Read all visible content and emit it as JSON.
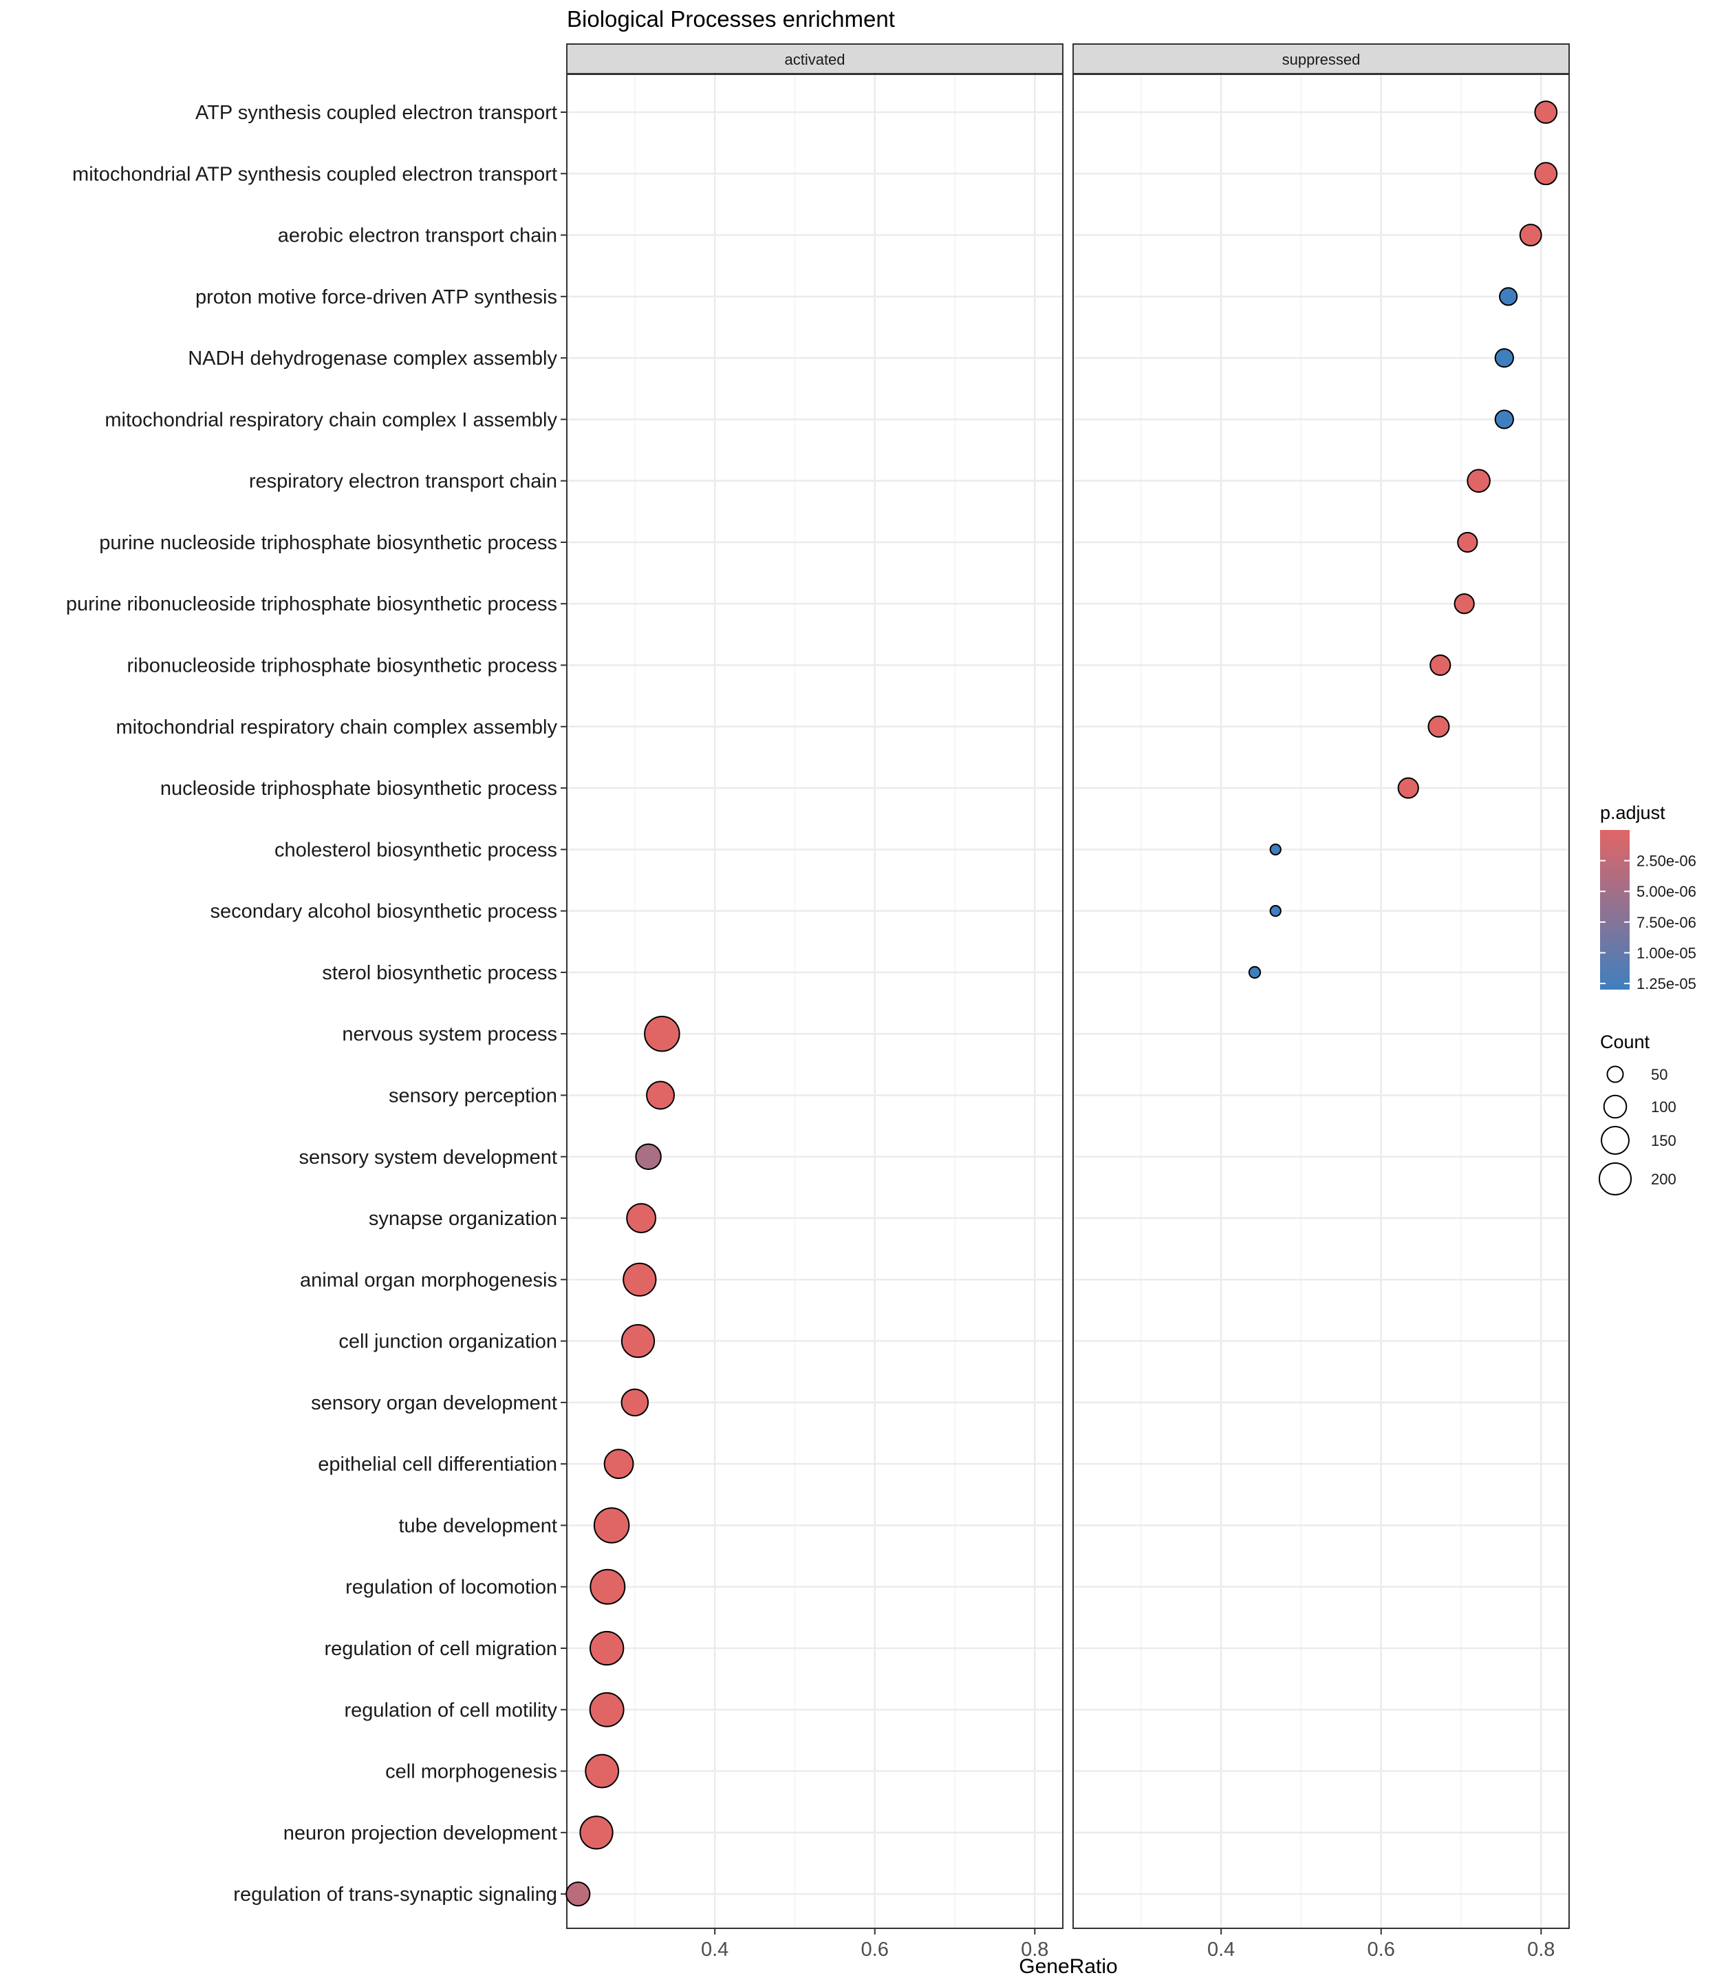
{
  "chart_data": {
    "type": "scatter",
    "title": "Biological Processes enrichment",
    "xlabel": "GeneRatio",
    "ylabel": "",
    "xlim": [
      0.215,
      0.835
    ],
    "x_ticks": [
      {
        "value": 0.4,
        "label": "0.4"
      },
      {
        "value": 0.6,
        "label": "0.6"
      },
      {
        "value": 0.8,
        "label": "0.8"
      }
    ],
    "panels": [
      {
        "key": "activated",
        "label": "activated"
      },
      {
        "key": "suppressed",
        "label": "suppressed"
      }
    ],
    "categories": [
      "ATP synthesis coupled electron transport",
      "mitochondrial ATP synthesis coupled electron transport",
      "aerobic electron transport chain",
      "proton motive force-driven ATP synthesis",
      "NADH dehydrogenase complex assembly",
      "mitochondrial respiratory chain complex I assembly",
      "respiratory electron transport chain",
      "purine nucleoside triphosphate biosynthetic process",
      "purine ribonucleoside triphosphate biosynthetic process",
      "ribonucleoside triphosphate biosynthetic process",
      "mitochondrial respiratory chain complex assembly",
      "nucleoside triphosphate biosynthetic process",
      "cholesterol biosynthetic process",
      "secondary alcohol biosynthetic process",
      "sterol biosynthetic process",
      "nervous system process",
      "sensory perception",
      "sensory system development",
      "synapse organization",
      "animal organ morphogenesis",
      "cell junction organization",
      "sensory organ development",
      "epithelial cell differentiation",
      "tube development",
      "regulation of locomotion",
      "regulation of cell migration",
      "regulation of cell motility",
      "cell morphogenesis",
      "neuron projection development",
      "regulation of trans-synaptic signaling"
    ],
    "points": [
      {
        "term": "ATP synthesis coupled electron transport",
        "panel": "suppressed",
        "gene_ratio": 0.806,
        "count": 95,
        "p_adjust": 1e-08
      },
      {
        "term": "mitochondrial ATP synthesis coupled electron transport",
        "panel": "suppressed",
        "gene_ratio": 0.806,
        "count": 95,
        "p_adjust": 1e-08
      },
      {
        "term": "aerobic electron transport chain",
        "panel": "suppressed",
        "gene_ratio": 0.787,
        "count": 90,
        "p_adjust": 1e-08
      },
      {
        "term": "proton motive force-driven ATP synthesis",
        "panel": "suppressed",
        "gene_ratio": 0.759,
        "count": 60,
        "p_adjust": 1.3e-05
      },
      {
        "term": "NADH dehydrogenase complex assembly",
        "panel": "suppressed",
        "gene_ratio": 0.754,
        "count": 65,
        "p_adjust": 1.3e-05
      },
      {
        "term": "mitochondrial respiratory chain complex I assembly",
        "panel": "suppressed",
        "gene_ratio": 0.754,
        "count": 65,
        "p_adjust": 1.3e-05
      },
      {
        "term": "respiratory electron transport chain",
        "panel": "suppressed",
        "gene_ratio": 0.722,
        "count": 100,
        "p_adjust": 1e-08
      },
      {
        "term": "purine nucleoside triphosphate biosynthetic process",
        "panel": "suppressed",
        "gene_ratio": 0.708,
        "count": 75,
        "p_adjust": 1e-08
      },
      {
        "term": "purine ribonucleoside triphosphate biosynthetic process",
        "panel": "suppressed",
        "gene_ratio": 0.704,
        "count": 75,
        "p_adjust": 1e-08
      },
      {
        "term": "ribonucleoside triphosphate biosynthetic process",
        "panel": "suppressed",
        "gene_ratio": 0.674,
        "count": 80,
        "p_adjust": 1e-08
      },
      {
        "term": "mitochondrial respiratory chain complex assembly",
        "panel": "suppressed",
        "gene_ratio": 0.672,
        "count": 85,
        "p_adjust": 1e-08
      },
      {
        "term": "nucleoside triphosphate biosynthetic process",
        "panel": "suppressed",
        "gene_ratio": 0.634,
        "count": 80,
        "p_adjust": 1e-08
      },
      {
        "term": "cholesterol biosynthetic process",
        "panel": "suppressed",
        "gene_ratio": 0.468,
        "count": 22,
        "p_adjust": 1.3e-05
      },
      {
        "term": "secondary alcohol biosynthetic process",
        "panel": "suppressed",
        "gene_ratio": 0.468,
        "count": 22,
        "p_adjust": 1.3e-05
      },
      {
        "term": "sterol biosynthetic process",
        "panel": "suppressed",
        "gene_ratio": 0.442,
        "count": 25,
        "p_adjust": 1.3e-05
      },
      {
        "term": "nervous system process",
        "panel": "activated",
        "gene_ratio": 0.334,
        "count": 240,
        "p_adjust": 1e-08
      },
      {
        "term": "sensory perception",
        "panel": "activated",
        "gene_ratio": 0.332,
        "count": 150,
        "p_adjust": 1e-08
      },
      {
        "term": "sensory system development",
        "panel": "activated",
        "gene_ratio": 0.317,
        "count": 125,
        "p_adjust": 4.5e-06
      },
      {
        "term": "synapse organization",
        "panel": "activated",
        "gene_ratio": 0.308,
        "count": 165,
        "p_adjust": 1e-08
      },
      {
        "term": "animal organ morphogenesis",
        "panel": "activated",
        "gene_ratio": 0.306,
        "count": 210,
        "p_adjust": 1e-08
      },
      {
        "term": "cell junction organization",
        "panel": "activated",
        "gene_ratio": 0.304,
        "count": 210,
        "p_adjust": 1e-08
      },
      {
        "term": "sensory organ development",
        "panel": "activated",
        "gene_ratio": 0.3,
        "count": 140,
        "p_adjust": 1e-08
      },
      {
        "term": "epithelial cell differentiation",
        "panel": "activated",
        "gene_ratio": 0.28,
        "count": 165,
        "p_adjust": 1e-08
      },
      {
        "term": "tube development",
        "panel": "activated",
        "gene_ratio": 0.271,
        "count": 240,
        "p_adjust": 1e-08
      },
      {
        "term": "regulation of locomotion",
        "panel": "activated",
        "gene_ratio": 0.266,
        "count": 235,
        "p_adjust": 1e-08
      },
      {
        "term": "regulation of cell migration",
        "panel": "activated",
        "gene_ratio": 0.265,
        "count": 220,
        "p_adjust": 1e-08
      },
      {
        "term": "regulation of cell motility",
        "panel": "activated",
        "gene_ratio": 0.265,
        "count": 225,
        "p_adjust": 1e-08
      },
      {
        "term": "cell morphogenesis",
        "panel": "activated",
        "gene_ratio": 0.259,
        "count": 215,
        "p_adjust": 1e-08
      },
      {
        "term": "neuron projection development",
        "panel": "activated",
        "gene_ratio": 0.252,
        "count": 210,
        "p_adjust": 1e-08
      },
      {
        "term": "regulation of trans-synaptic signaling",
        "panel": "activated",
        "gene_ratio": 0.229,
        "count": 110,
        "p_adjust": 3e-06
      }
    ],
    "color_legend": {
      "title": "p.adjust",
      "low_color": "#E06666",
      "high_color": "#3F7FBF",
      "range": [
        0,
        1.3e-05
      ],
      "ticks": [
        {
          "value": 2.5e-06,
          "label": "2.50e-06"
        },
        {
          "value": 5e-06,
          "label": "5.00e-06"
        },
        {
          "value": 7.5e-06,
          "label": "7.50e-06"
        },
        {
          "value": 1e-05,
          "label": "1.00e-05"
        },
        {
          "value": 1.25e-05,
          "label": "1.25e-05"
        }
      ]
    },
    "size_legend": {
      "title": "Count",
      "values": [
        50,
        100,
        150,
        200
      ],
      "labels": [
        "50",
        "100",
        "150",
        "200"
      ]
    },
    "grid": true,
    "legend_position": "right"
  }
}
